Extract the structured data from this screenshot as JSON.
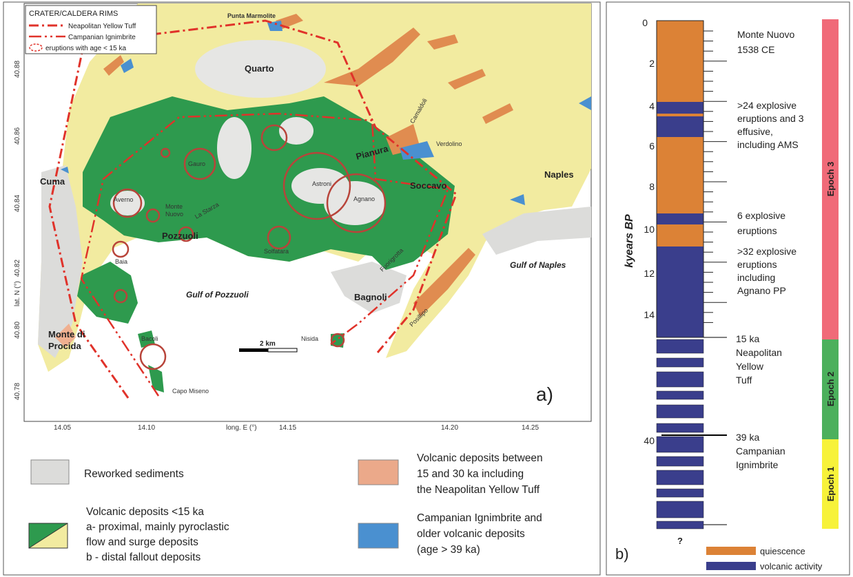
{
  "map": {
    "rim_legend_title": "CRATER/CALDERA RIMS",
    "rim_legend": [
      "Neapolitan Yellow Tuff",
      "Campanian Ignimbrite",
      "eruptions with age < 15 ka"
    ],
    "places": [
      "Punta Marmolite",
      "Quarto",
      "Cuma",
      "Averno",
      "Gauro",
      "Astroni",
      "Monte",
      "Nuovo",
      "La Starza",
      "Agnano",
      "Pozzuoli",
      "Solfatara",
      "Soccavo",
      "Pianura",
      "Camaldoli",
      "Verdolino",
      "Naples",
      "Baia",
      "Fuorigrotta",
      "Bagnoli",
      "Posillipo",
      "Monte di",
      "Procida",
      "Bacoli",
      "Nisida",
      "Capo Miseno"
    ],
    "gulfs": [
      "Gulf of Pozzuoli",
      "Gulf of Naples"
    ],
    "scale": "2 km",
    "xticks": [
      "14.05",
      "14.10",
      "14.15",
      "14.20",
      "14.25"
    ],
    "xlabel": "long. E (°)",
    "yticks": [
      "40.88",
      "40.86",
      "40.84",
      "40.82",
      "40.80",
      "40.78"
    ],
    "ylabel": "lat. N (°)",
    "panel": "a)"
  },
  "legend": {
    "reworked": "Reworked sediments",
    "young": [
      "Volcanic deposits <15 ka",
      "a- proximal, mainly pyroclastic",
      "flow and surge deposits",
      "b - distal fallout deposits"
    ],
    "mid": [
      "Volcanic deposits between",
      "15 and 30 ka including",
      "the Neapolitan Yellow Tuff"
    ],
    "old": [
      "Campanian Ignimbrite and",
      "older volcanic deposits",
      "(age > 39 ka)"
    ]
  },
  "column": {
    "axis_label": "kyears BP",
    "ticks": [
      "0",
      "2",
      "4",
      "6",
      "8",
      "10",
      "12",
      "14",
      "40"
    ],
    "unknown": "?",
    "annotations": [
      [
        "Monte Nuovo",
        "1538 CE"
      ],
      [
        ">24 explosive",
        "eruptions and 3",
        "effusive,",
        "including AMS"
      ],
      [
        "6 explosive",
        "eruptions"
      ],
      [
        ">32 explosive",
        "eruptions",
        "including",
        "Agnano PP"
      ],
      [
        "15 ka",
        "Neapolitan",
        "Yellow",
        "Tuff"
      ],
      [
        "39 ka",
        "Campanian",
        "Ignimbrite"
      ]
    ],
    "epochs": [
      "Epoch 3",
      "Epoch 2",
      "Epoch 1"
    ],
    "legend": [
      "quiescence",
      "volcanic activity"
    ],
    "panel": "b)"
  }
}
